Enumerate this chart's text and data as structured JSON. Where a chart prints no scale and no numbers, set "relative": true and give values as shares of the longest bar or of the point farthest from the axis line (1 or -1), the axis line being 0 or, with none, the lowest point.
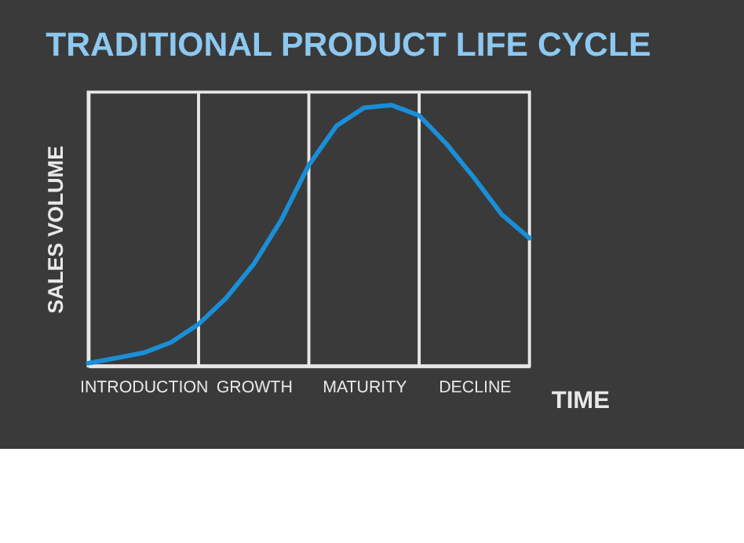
{
  "chart_data": {
    "type": "line",
    "title": "TRADITIONAL PRODUCT LIFE CYCLE",
    "xlabel": "TIME",
    "ylabel": "SALES VOLUME",
    "relative": true,
    "line_style": "solid",
    "grid": "x",
    "categories": [
      null,
      null,
      "INTRODUCTION",
      null,
      null,
      null,
      "GROWTH",
      null,
      null,
      null,
      "MATURITY",
      null,
      null,
      null,
      "DECLINE",
      null,
      null
    ],
    "series": [
      {
        "color": "#1a8fd8",
        "values": [
          0.01,
          0.03,
          0.05,
          0.09,
          0.16,
          0.26,
          0.39,
          0.56,
          0.77,
          0.92,
          0.99,
          1.0,
          0.96,
          0.85,
          0.72,
          0.58,
          0.49
        ]
      }
    ]
  }
}
